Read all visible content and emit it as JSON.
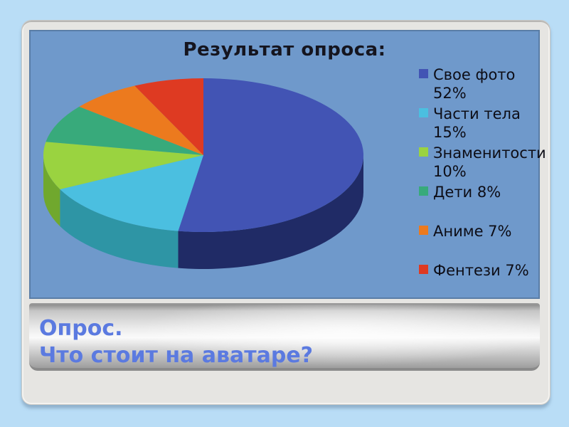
{
  "page_background": "#b9ddf6",
  "slide": {
    "background": "#e6e5e2",
    "title_line1": "Опрос.",
    "title_line2": "Что стоит на аватаре?",
    "title_color": "#5b7ae0"
  },
  "chart_data": {
    "type": "pie",
    "title": "Результат опроса:",
    "labels": [
      "Свое фото",
      "Части тела",
      "Знаменитости",
      "Дети",
      "Аниме",
      "Фентези"
    ],
    "values": [
      52,
      15,
      10,
      8,
      7,
      7
    ],
    "unit": "%",
    "style": "3d",
    "start_angle_deg": 0,
    "direction": "clockwise",
    "legend_position": "right",
    "panel_background": "#6f99cb",
    "title_color": "#15151f",
    "legend_text_color": "#0d0d16",
    "colors": [
      "#4254b4",
      "#4bbfe0",
      "#9ad340",
      "#38aa7b",
      "#ec7a1e",
      "#de3a22"
    ],
    "side_colors": [
      "#202b66",
      "#2e95a5",
      "#70a82e",
      "#237a55",
      "#a85412",
      "#9c2414"
    ],
    "legend_entries": [
      "Свое фото\n52%",
      "Части тела\n15%",
      "Знаменитости\n10%",
      "Дети 8%",
      "Аниме 7%",
      "Фентези 7%"
    ]
  }
}
